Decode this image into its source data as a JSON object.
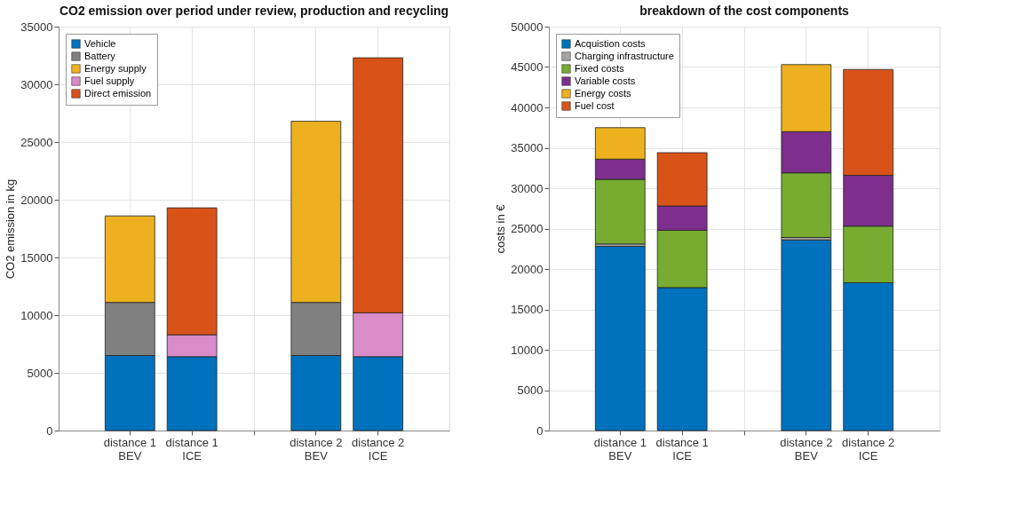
{
  "chart_data": [
    {
      "type": "bar",
      "stacked": true,
      "title": "CO2 emission over period under review, production and recycling",
      "ylabel": "CO2 emission in kg",
      "categories": [
        "distance 1\nBEV",
        "distance 1\nICE",
        null,
        "distance 2\nBEV",
        "distance 2\nICE"
      ],
      "series": [
        {
          "name": "Vehicle",
          "color": "#0072bd",
          "values": [
            6500,
            6400,
            null,
            6500,
            6400
          ]
        },
        {
          "name": "Battery",
          "color": "#808080",
          "values": [
            4600,
            null,
            null,
            4600,
            null
          ]
        },
        {
          "name": "Energy supply",
          "color": "#edb120",
          "values": [
            7500,
            null,
            null,
            15700,
            null
          ]
        },
        {
          "name": "Fuel supply",
          "color": "#d98cc8",
          "values": [
            null,
            1900,
            null,
            null,
            3800
          ]
        },
        {
          "name": "Direct emission",
          "color": "#d95319",
          "values": [
            null,
            11000,
            null,
            null,
            22100
          ]
        }
      ],
      "ylim": [
        0,
        35000
      ],
      "yticks": [
        0,
        5000,
        10000,
        15000,
        20000,
        25000,
        30000,
        35000
      ],
      "grid": true,
      "legend": "top left"
    },
    {
      "type": "bar",
      "stacked": true,
      "title": "breakdown of the cost components",
      "ylabel": "costs in €",
      "categories": [
        "distance 1\nBEV",
        "distance 1\nICE",
        null,
        "distance 2\nBEV",
        "distance 2\nICE"
      ],
      "series": [
        {
          "name": "Acquistion costs",
          "color": "#0072bd",
          "values": [
            22800,
            17700,
            null,
            23600,
            18300
          ]
        },
        {
          "name": "Charging infrastructure",
          "color": "#a6a6a6",
          "values": [
            300,
            null,
            null,
            300,
            null
          ]
        },
        {
          "name": "Fixed costs",
          "color": "#77ac30",
          "values": [
            8000,
            7100,
            null,
            8000,
            7000
          ]
        },
        {
          "name": "Variable costs",
          "color": "#7e2f8e",
          "values": [
            2500,
            3000,
            null,
            5100,
            6300
          ]
        },
        {
          "name": "Energy costs",
          "color": "#edb120",
          "values": [
            3900,
            null,
            null,
            8300,
            null
          ]
        },
        {
          "name": "Fuel cost",
          "color": "#d95319",
          "values": [
            null,
            6600,
            null,
            null,
            13100
          ]
        }
      ],
      "ylim": [
        0,
        50000
      ],
      "yticks": [
        0,
        5000,
        10000,
        15000,
        20000,
        25000,
        30000,
        35000,
        40000,
        45000,
        50000
      ],
      "grid": true,
      "legend": "top left"
    }
  ]
}
